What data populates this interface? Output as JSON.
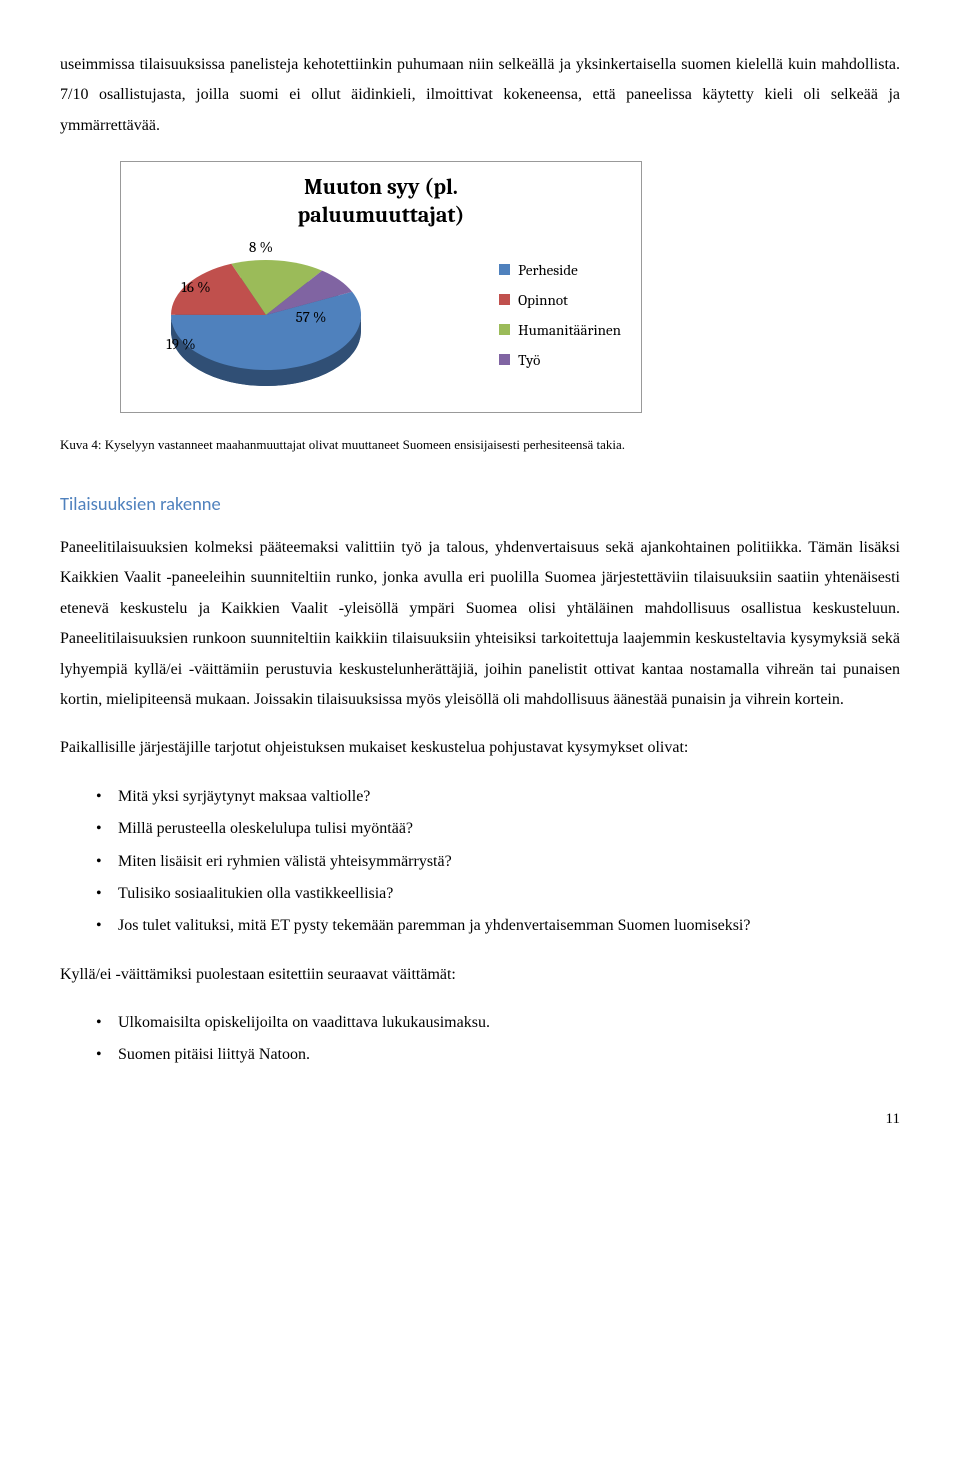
{
  "para1": "useimmissa tilaisuuksissa panelisteja kehotettiinkin puhumaan niin selkeällä ja yksinkertaisella suomen kielellä kuin mahdollista. 7/10 osallistujasta, joilla suomi ei ollut äidinkieli, ilmoittivat kokeneensa, että paneelissa käytetty kieli oli selkeää ja ymmärrettävää.",
  "chart": {
    "title_line1": "Muuton syy (pl.",
    "title_line2": "paluumuuttajat)",
    "slices": [
      {
        "label": "Perheside",
        "value": 57,
        "color": "#4f81bd",
        "text": "57 %"
      },
      {
        "label": "Opinnot",
        "value": 19,
        "color": "#c0504d",
        "text": "19 %"
      },
      {
        "label": "Humanitäärinen",
        "value": 16,
        "color": "#9bbb59",
        "text": "16 %"
      },
      {
        "label": "Työ",
        "value": 8,
        "color": "#8064a2",
        "text": "8 %"
      }
    ],
    "base_color": "#2a4d72",
    "legend_square_colors": [
      "#4f81bd",
      "#c0504d",
      "#9bbb59",
      "#8064a2"
    ]
  },
  "figcaption": "Kuva 4: Kyselyyn vastanneet maahanmuuttajat olivat muuttaneet Suomeen ensisijaisesti perhesiteensä takia.",
  "h2": "Tilaisuuksien rakenne",
  "para2": "Paneelitilaisuuksien kolmeksi pääteemaksi valittiin työ ja talous, yhdenvertaisuus sekä ajankohtainen politiikka. Tämän lisäksi Kaikkien Vaalit -paneeleihin suunniteltiin runko, jonka avulla eri puolilla Suomea järjestettäviin tilaisuuksiin saatiin yhtenäisesti etenevä keskustelu ja Kaikkien Vaalit -yleisöllä ympäri Suomea olisi yhtäläinen mahdollisuus osallistua keskusteluun. Paneelitilaisuuksien runkoon suunniteltiin kaikkiin tilaisuuksiin yhteisiksi tarkoitettuja laajemmin keskusteltavia kysymyksiä sekä lyhyempiä kyllä/ei -väittämiin perustuvia keskustelunherättäjiä, joihin panelistit ottivat kantaa nostamalla vihreän tai punaisen kortin, mielipiteensä mukaan. Joissakin tilaisuuksissa myös yleisöllä oli mahdollisuus äänestää punaisin ja vihrein kortein.",
  "para3_intro": "Paikallisille järjestäjille tarjotut ohjeistuksen mukaiset keskustelua pohjustavat kysymykset olivat:",
  "questions": [
    "Mitä yksi syrjäytynyt maksaa valtiolle?",
    "Millä perusteella oleskelulupa tulisi myöntää?",
    "Miten lisäisit eri ryhmien välistä yhteisymmärrystä?",
    "Tulisiko sosiaalitukien olla vastikkeellisia?",
    "Jos tulet valituksi, mitä ET pysty tekemään paremman ja yhdenvertaisemman Suomen luomiseksi?"
  ],
  "para4_intro": "Kyllä/ei -väittämiksi puolestaan esitettiin seuraavat väittämät:",
  "claims": [
    "Ulkomaisilta opiskelijoilta on vaadittava lukukausimaksu.",
    "Suomen pitäisi liittyä Natoon."
  ],
  "page_number": "11"
}
